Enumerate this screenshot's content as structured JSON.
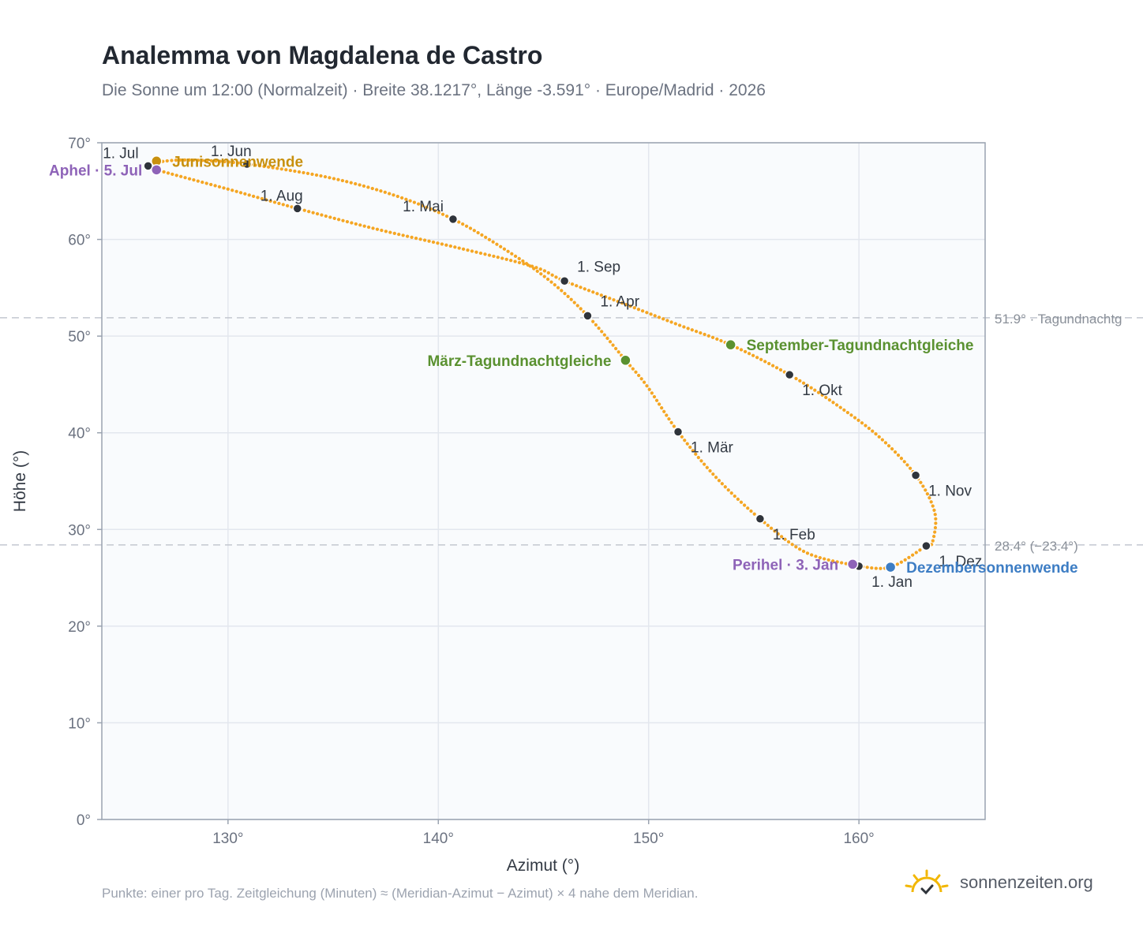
{
  "title": "Analemma von Magdalena de Castro",
  "subtitle": "Die Sonne um 12:00 (Normalzeit) · Breite 38.1217°, Länge -3.591° · Europe/Madrid · 2026",
  "footnote": "Punkte: einer pro Tag. Zeitgleichung (Minuten) ≈ (Meridian-Azimut − Azimut) × 4 nahe dem Meridian.",
  "brand": "sonnenzeiten.org",
  "colors": {
    "analemma": "#f5a623",
    "month_marker": "#2f343b",
    "solstice_june": "#c8900e",
    "solstice_december": "#3d7dc4",
    "equinox": "#5a9130",
    "apsis": "#8e63b8",
    "reference_line": "#c3c8d0",
    "plot_background": "#f9fbfd",
    "grid": "#e3e7ee"
  },
  "chart_data": {
    "type": "scatter",
    "xlabel": "Azimut (°)",
    "ylabel": "Höhe (°)",
    "xlim": [
      124,
      166
    ],
    "ylim": [
      0,
      70
    ],
    "x_ticks": [
      130,
      140,
      150,
      160
    ],
    "x_tick_labels": [
      "130°",
      "140°",
      "150°",
      "160°"
    ],
    "y_ticks": [
      0,
      10,
      20,
      30,
      40,
      50,
      60,
      70
    ],
    "y_tick_labels": [
      "0°",
      "10°",
      "20°",
      "30°",
      "40°",
      "50°",
      "60°",
      "70°"
    ],
    "grid": true,
    "analemma_path": [
      [
        160.0,
        26.2
      ],
      [
        157.5,
        27.6
      ],
      [
        155.3,
        31.1
      ],
      [
        153.2,
        35.4
      ],
      [
        151.4,
        40.1
      ],
      [
        149.9,
        44.9
      ],
      [
        148.9,
        47.5
      ],
      [
        147.1,
        52.1
      ],
      [
        145.2,
        55.9
      ],
      [
        143.0,
        59.2
      ],
      [
        140.7,
        62.1
      ],
      [
        138.0,
        64.5
      ],
      [
        134.8,
        66.4
      ],
      [
        130.9,
        67.8
      ],
      [
        128.5,
        68.2
      ],
      [
        127.0,
        68.1
      ],
      [
        126.2,
        67.6
      ],
      [
        126.6,
        67.2
      ],
      [
        130.0,
        65.2
      ],
      [
        133.3,
        63.2
      ],
      [
        137.0,
        61.1
      ],
      [
        141.0,
        59.1
      ],
      [
        144.5,
        57.2
      ],
      [
        146.0,
        55.7
      ],
      [
        149.0,
        53.2
      ],
      [
        151.5,
        51.1
      ],
      [
        153.9,
        49.1
      ],
      [
        156.7,
        46.0
      ],
      [
        159.0,
        42.8
      ],
      [
        161.0,
        39.5
      ],
      [
        162.7,
        35.6
      ],
      [
        163.6,
        31.8
      ],
      [
        163.5,
        28.7
      ],
      [
        163.2,
        28.3
      ],
      [
        161.5,
        26.1
      ],
      [
        160.0,
        26.2
      ]
    ],
    "month_markers": [
      {
        "label": "1. Jan",
        "x": 160.0,
        "y": 26.2,
        "anchor": "below-right"
      },
      {
        "label": "1. Feb",
        "x": 155.3,
        "y": 31.1,
        "anchor": "below-right"
      },
      {
        "label": "1. Mär",
        "x": 151.4,
        "y": 40.1,
        "anchor": "below-right"
      },
      {
        "label": "1. Apr",
        "x": 147.1,
        "y": 52.1,
        "anchor": "above-right"
      },
      {
        "label": "1. Mai",
        "x": 140.7,
        "y": 62.1,
        "anchor": "above-left"
      },
      {
        "label": "1. Jun",
        "x": 130.9,
        "y": 67.8,
        "anchor": "above-left"
      },
      {
        "label": "1. Jul",
        "x": 126.2,
        "y": 67.6,
        "anchor": "above-left"
      },
      {
        "label": "1. Aug",
        "x": 133.3,
        "y": 63.2,
        "anchor": "above-left"
      },
      {
        "label": "1. Sep",
        "x": 146.0,
        "y": 55.7,
        "anchor": "above-right"
      },
      {
        "label": "1. Okt",
        "x": 156.7,
        "y": 46.0,
        "anchor": "below-right"
      },
      {
        "label": "1. Nov",
        "x": 162.7,
        "y": 35.6,
        "anchor": "below-right"
      },
      {
        "label": "1. Dez",
        "x": 163.2,
        "y": 28.3,
        "anchor": "below-right"
      }
    ],
    "events": [
      {
        "label": "Junisonnenwende",
        "x": 126.6,
        "y": 68.1,
        "color": "#c8900e",
        "anchor": "right"
      },
      {
        "label": "Aphel · 5. Jul",
        "x": 126.6,
        "y": 67.2,
        "color": "#8e63b8",
        "anchor": "left"
      },
      {
        "label": "März-Tagundnachtgleiche",
        "x": 148.9,
        "y": 47.5,
        "color": "#5a9130",
        "anchor": "left"
      },
      {
        "label": "September-Tagundnachtgleiche",
        "x": 153.9,
        "y": 49.1,
        "color": "#5a9130",
        "anchor": "right"
      },
      {
        "label": "Perihel · 3. Jan",
        "x": 159.7,
        "y": 26.4,
        "color": "#8e63b8",
        "anchor": "left"
      },
      {
        "label": "Dezembersonnenwende",
        "x": 161.5,
        "y": 26.1,
        "color": "#3d7dc4",
        "anchor": "right"
      }
    ],
    "reference_lines": [
      {
        "y": 51.9,
        "label": "51.9° · Tagundnachtg"
      },
      {
        "y": 28.4,
        "label": "28.4° (−23.4°)"
      }
    ]
  }
}
